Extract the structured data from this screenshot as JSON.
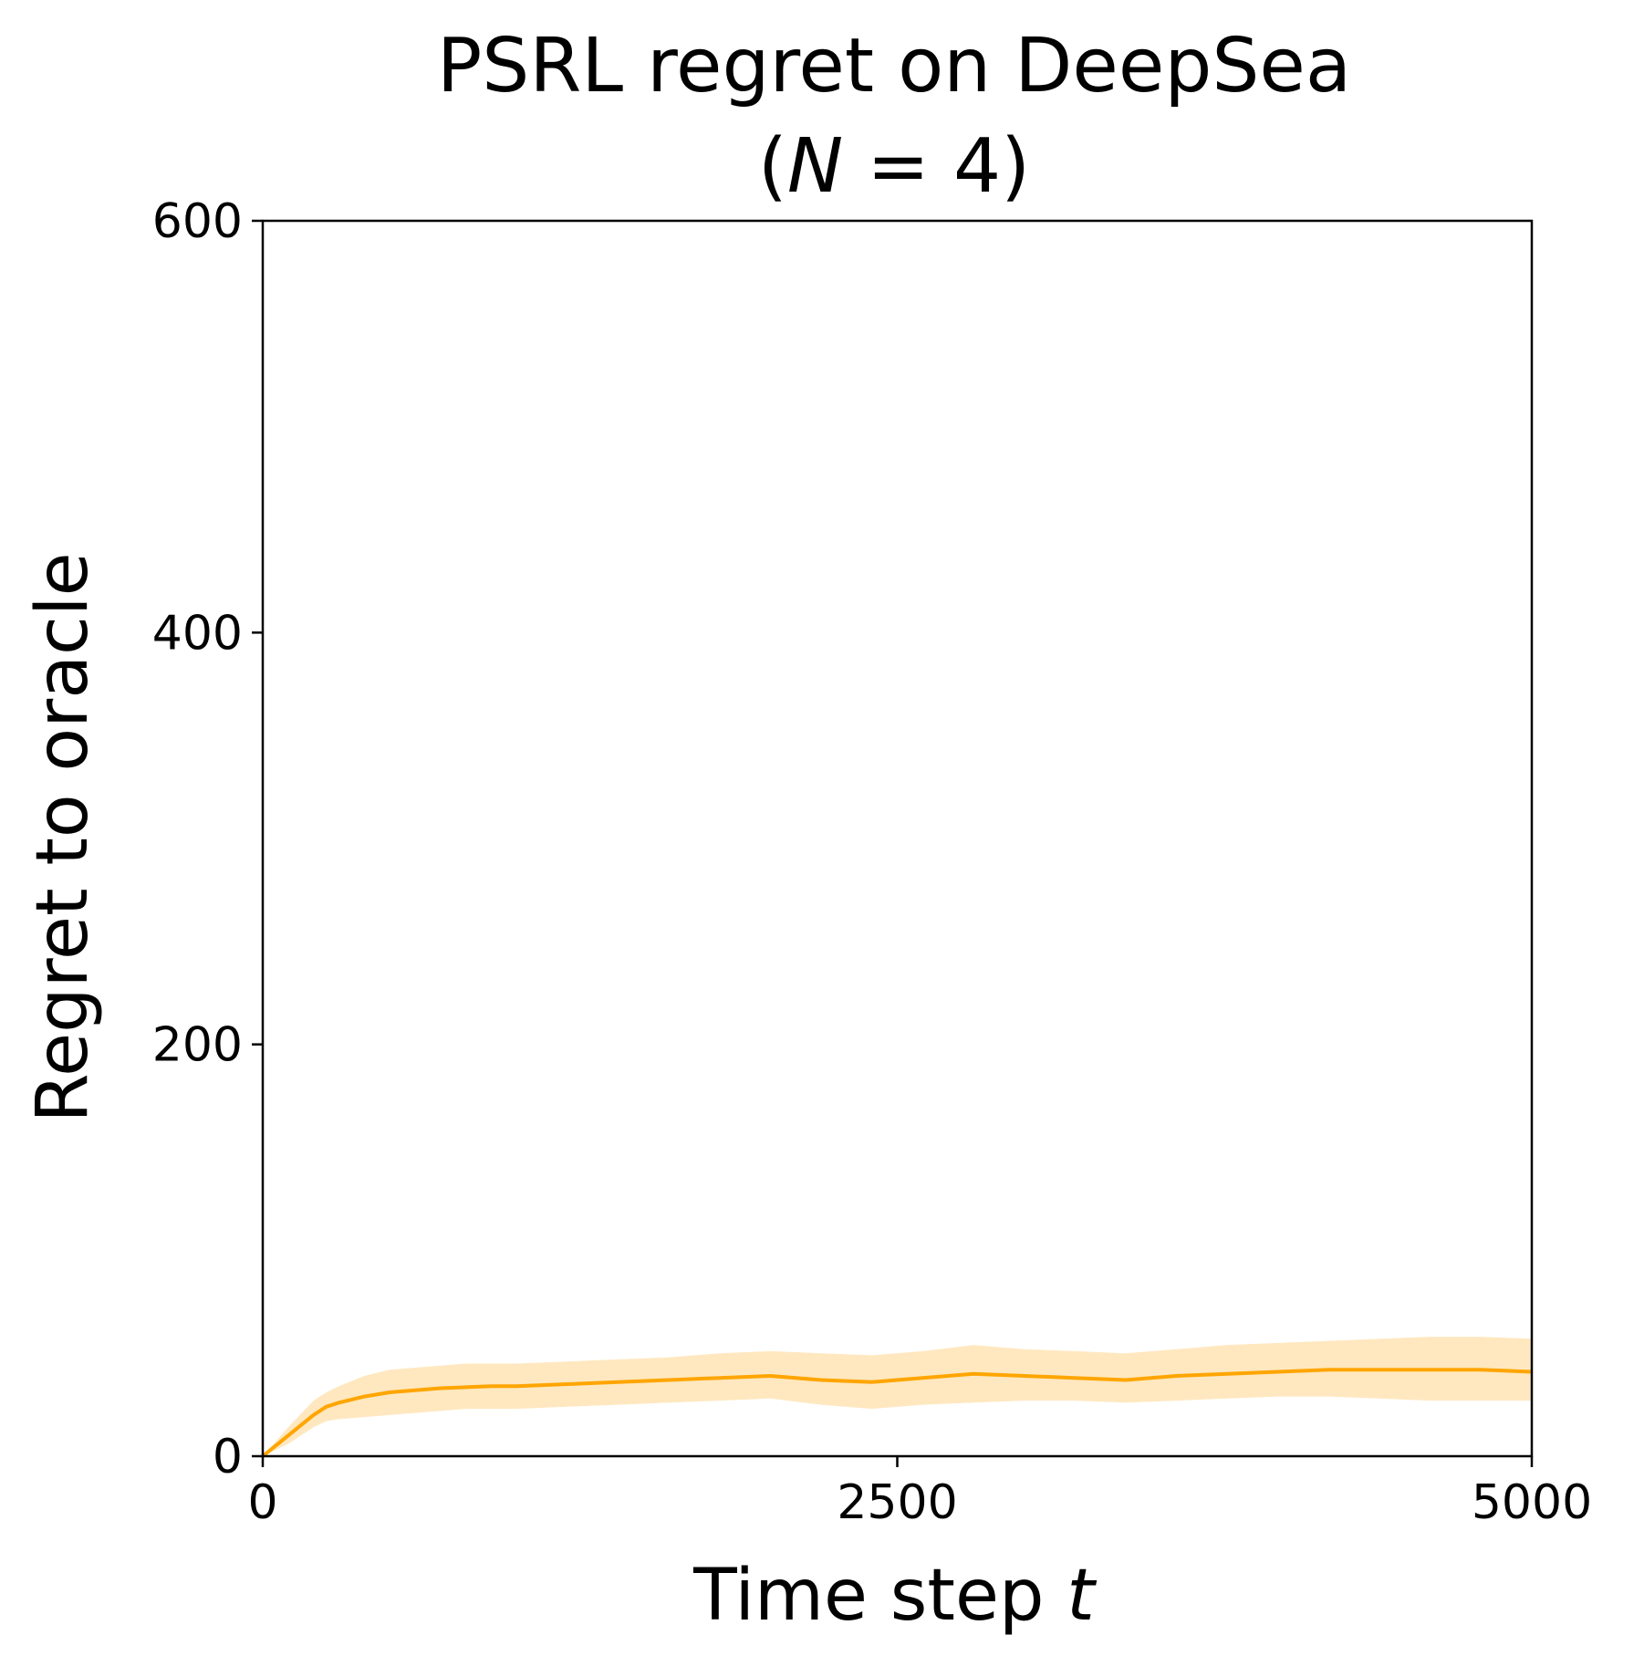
{
  "chart_data": {
    "type": "line",
    "title_line1": "PSRL regret on DeepSea",
    "title_line2_open": "(",
    "title_line2_var": "N",
    "title_line2_rest": " =  4)",
    "xlabel_text": "Time step ",
    "xlabel_var": "t",
    "ylabel": "Regret to oracle",
    "xlim": [
      0,
      5000
    ],
    "ylim": [
      0,
      600
    ],
    "xticks": [
      0,
      2500,
      5000
    ],
    "yticks": [
      0,
      200,
      400,
      600
    ],
    "grid": false,
    "legend": "none",
    "colors": {
      "line": "#FFA500",
      "band": "#FFE8C0",
      "axes": "#000000"
    },
    "series": [
      {
        "x": [
          0,
          100,
          200,
          250,
          300,
          400,
          500,
          600,
          700,
          800,
          900,
          1000,
          1200,
          1400,
          1600,
          1800,
          2000,
          2200,
          2400,
          2600,
          2800,
          3000,
          3200,
          3400,
          3600,
          3800,
          4000,
          4200,
          4400,
          4600,
          4800,
          5000
        ],
        "y": [
          0,
          10,
          20,
          24,
          26,
          29,
          31,
          32,
          33,
          33.5,
          34,
          34,
          35,
          36,
          37,
          38,
          39,
          37,
          36,
          38,
          40,
          39,
          38,
          37,
          39,
          40,
          41,
          42,
          42,
          42,
          42,
          41
        ],
        "lower": [
          0,
          6,
          14,
          17,
          18,
          19,
          20,
          21,
          22,
          23,
          23,
          23,
          24,
          25,
          26,
          27,
          28,
          25,
          23,
          25,
          26,
          27,
          27,
          26,
          27,
          28,
          29,
          29,
          28,
          27,
          27,
          27
        ],
        "upper": [
          0,
          14,
          27,
          31,
          34,
          39,
          42,
          43,
          44,
          45,
          45,
          45,
          46,
          47,
          48,
          50,
          51,
          50,
          49,
          51,
          54,
          52,
          51,
          50,
          52,
          54,
          55,
          56,
          57,
          58,
          58,
          57
        ]
      }
    ]
  }
}
